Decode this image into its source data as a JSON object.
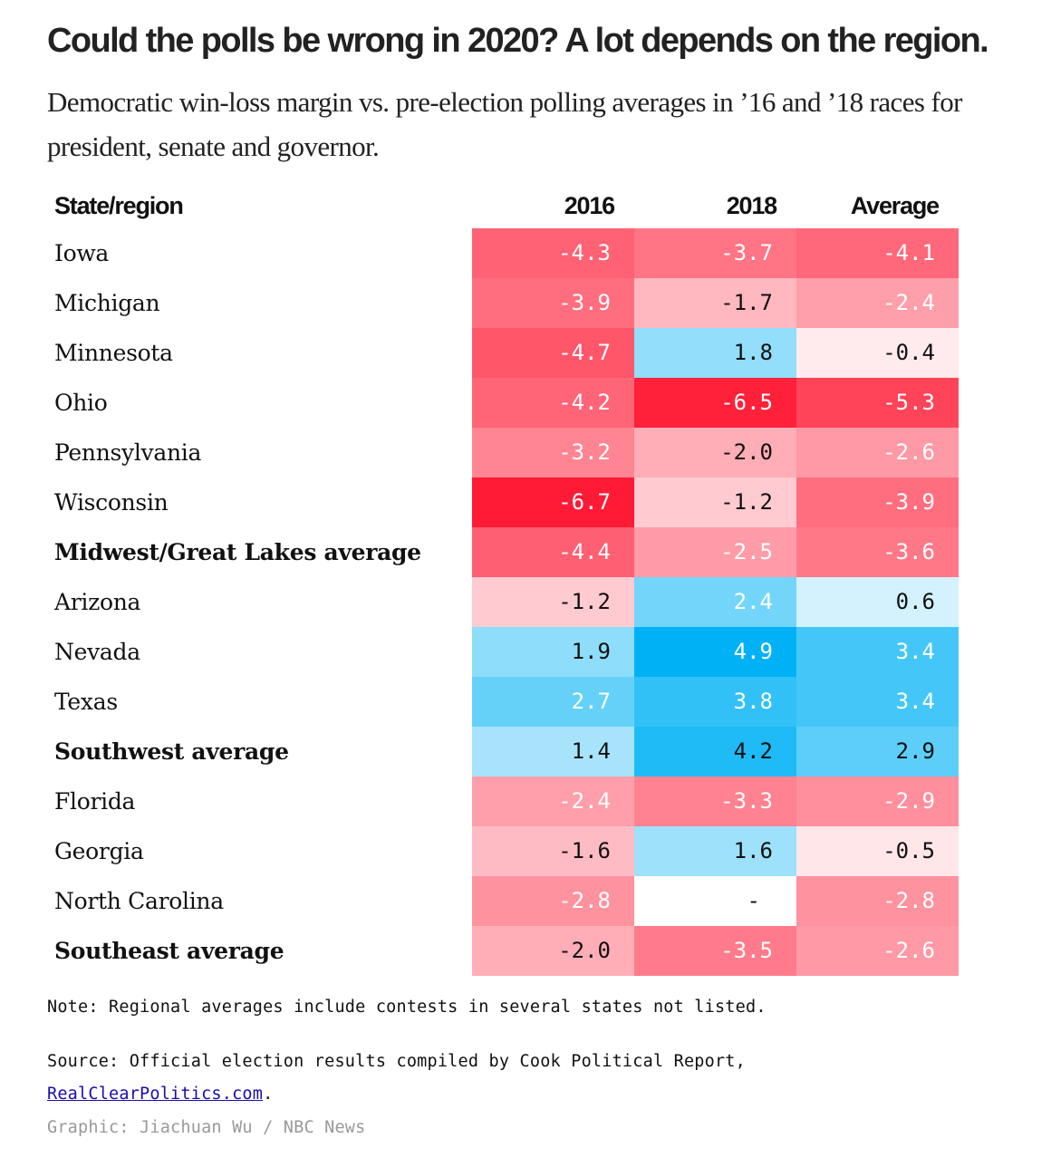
{
  "title": "Could the polls be wrong in 2020? A lot depends on the region.",
  "subtitle": "Democratic win-loss margin vs. pre-election polling averages in ’16 and ’18 races for president, senate and governor.",
  "colors": {
    "negative_max": "#ff1a35",
    "positive_max": "#00b2f5",
    "neutral": "#ffffff",
    "missing": "#ffffff"
  },
  "chart_data": {
    "type": "heatmap",
    "title": "Could the polls be wrong in 2020? A lot depends on the region.",
    "subtitle": "Democratic win-loss margin vs. pre-election polling averages in ’16 and ’18 races for president, senate and governor.",
    "row_header": "State/region",
    "columns": [
      "2016",
      "2018",
      "Average"
    ],
    "rows": [
      {
        "label": "Iowa",
        "bold": false,
        "values": [
          -4.3,
          -3.7,
          -4.1
        ]
      },
      {
        "label": "Michigan",
        "bold": false,
        "values": [
          -3.9,
          -1.7,
          -2.4
        ]
      },
      {
        "label": "Minnesota",
        "bold": false,
        "values": [
          -4.7,
          1.8,
          -0.4
        ]
      },
      {
        "label": "Ohio",
        "bold": false,
        "values": [
          -4.2,
          -6.5,
          -5.3
        ]
      },
      {
        "label": "Pennsylvania",
        "bold": false,
        "values": [
          -3.2,
          -2.0,
          -2.6
        ]
      },
      {
        "label": "Wisconsin",
        "bold": false,
        "values": [
          -6.7,
          -1.2,
          -3.9
        ]
      },
      {
        "label": "Midwest/Great Lakes average",
        "bold": true,
        "values": [
          -4.4,
          -2.5,
          -3.6
        ]
      },
      {
        "label": "Arizona",
        "bold": false,
        "values": [
          -1.2,
          2.4,
          0.6
        ]
      },
      {
        "label": "Nevada",
        "bold": false,
        "values": [
          1.9,
          4.9,
          3.4
        ]
      },
      {
        "label": "Texas",
        "bold": false,
        "values": [
          2.7,
          3.8,
          3.4
        ]
      },
      {
        "label": "Southwest average",
        "bold": true,
        "values": [
          1.4,
          4.2,
          2.9
        ]
      },
      {
        "label": "Florida",
        "bold": false,
        "values": [
          -2.4,
          -3.3,
          -2.9
        ]
      },
      {
        "label": "Georgia",
        "bold": false,
        "values": [
          -1.6,
          1.6,
          -0.5
        ]
      },
      {
        "label": "North Carolina",
        "bold": false,
        "values": [
          -2.8,
          null,
          -2.8
        ]
      },
      {
        "label": "Southeast average",
        "bold": true,
        "values": [
          -2.0,
          -3.5,
          -2.6
        ]
      }
    ],
    "missing_label": "-",
    "color_scale": {
      "min": -6.7,
      "max": 4.9,
      "negative_color": "red",
      "positive_color": "blue"
    }
  },
  "footer": {
    "note": "Note: Regional averages include contests in several states not listed.",
    "source_prefix": "Source: Official election results compiled by Cook Political Report,",
    "source_link": "RealClearPolitics.com",
    "source_suffix": ".",
    "credit": "Graphic: Jiachuan Wu / NBC News"
  }
}
